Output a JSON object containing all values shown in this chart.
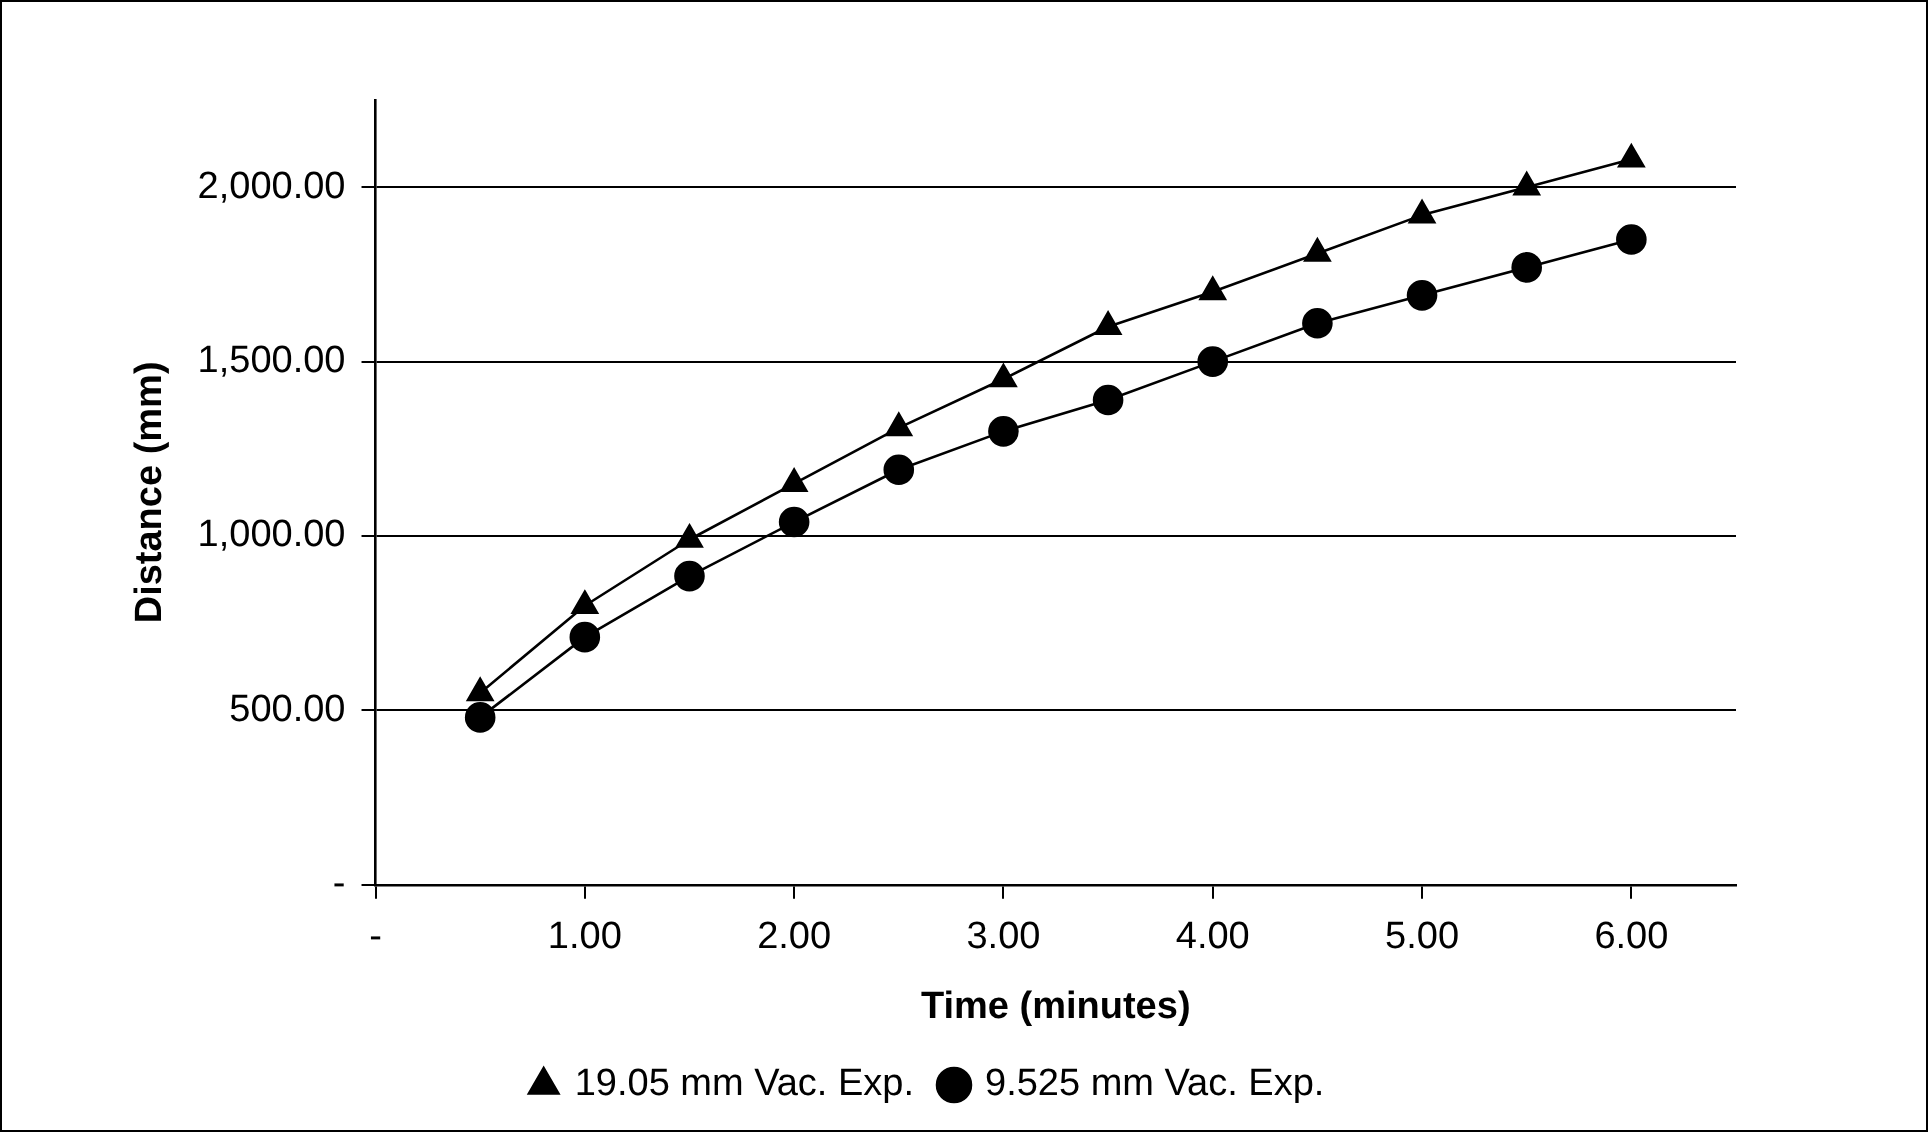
{
  "chart_data": {
    "type": "line",
    "xlabel": "Time (minutes)",
    "ylabel": "Distance (mm)",
    "x": [
      0.5,
      1,
      1.5,
      2,
      2.5,
      3,
      3.5,
      4,
      4.5,
      5,
      5.5,
      6
    ],
    "series": [
      {
        "name": "19.05 mm Vac. Exp.",
        "color": "#000000",
        "marker": "triangle",
        "values": [
          550,
          800,
          990,
          1150,
          1310,
          1450,
          1600,
          1700,
          1810,
          1920,
          2000,
          2080
        ]
      },
      {
        "name": "9.525 mm Vac. Exp.",
        "color": "#000000",
        "marker": "circle",
        "values": [
          480,
          710,
          885,
          1040,
          1190,
          1300,
          1390,
          1500,
          1610,
          1690,
          1770,
          1850
        ]
      }
    ],
    "xlim": [
      0,
      6.5
    ],
    "xticks": [
      {
        "value": 0,
        "label": "-"
      },
      {
        "value": 1,
        "label": "1.00"
      },
      {
        "value": 2,
        "label": "2.00"
      },
      {
        "value": 3,
        "label": "3.00"
      },
      {
        "value": 4,
        "label": "4.00"
      },
      {
        "value": 5,
        "label": "5.00"
      },
      {
        "value": 6,
        "label": "6.00"
      }
    ],
    "ylim": [
      0,
      2250
    ],
    "yticks": [
      {
        "value": 0,
        "label": "-"
      },
      {
        "value": 500,
        "label": "500.00"
      },
      {
        "value": 1000,
        "label": "1,000.00"
      },
      {
        "value": 1500,
        "label": "1,500.00"
      },
      {
        "value": 2000,
        "label": "2,000.00"
      }
    ],
    "grid": "y",
    "legend": "bottom",
    "line_style": "solid"
  }
}
